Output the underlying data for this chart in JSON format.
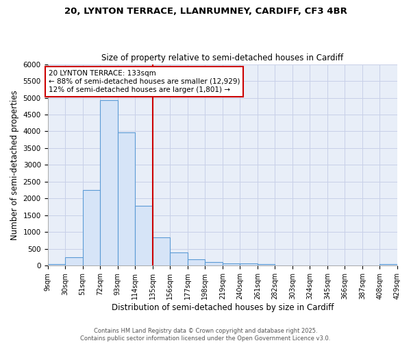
{
  "title1": "20, LYNTON TERRACE, LLANRUMNEY, CARDIFF, CF3 4BR",
  "title2": "Size of property relative to semi-detached houses in Cardiff",
  "xlabel": "Distribution of semi-detached houses by size in Cardiff",
  "ylabel": "Number of semi-detached properties",
  "bar_edges": [
    9,
    30,
    51,
    72,
    93,
    114,
    135,
    156,
    177,
    198,
    219,
    240,
    261,
    282,
    303,
    324,
    345,
    366,
    387,
    408,
    429
  ],
  "bar_heights": [
    50,
    255,
    2260,
    4930,
    3970,
    1780,
    840,
    400,
    195,
    105,
    70,
    60,
    55,
    10,
    5,
    5,
    5,
    3,
    3,
    50
  ],
  "bar_color": "#d6e4f7",
  "bar_edge_color": "#5b9bd5",
  "property_line_x": 135,
  "property_line_color": "#cc0000",
  "annotation_title": "20 LYNTON TERRACE: 133sqm",
  "annotation_line1": "← 88% of semi-detached houses are smaller (12,929)",
  "annotation_line2": "12% of semi-detached houses are larger (1,801) →",
  "annotation_box_color": "#cc0000",
  "ylim": [
    0,
    6000
  ],
  "yticks": [
    0,
    500,
    1000,
    1500,
    2000,
    2500,
    3000,
    3500,
    4000,
    4500,
    5000,
    5500,
    6000
  ],
  "tick_labels": [
    "9sqm",
    "30sqm",
    "51sqm",
    "72sqm",
    "93sqm",
    "114sqm",
    "135sqm",
    "156sqm",
    "177sqm",
    "198sqm",
    "219sqm",
    "240sqm",
    "261sqm",
    "282sqm",
    "303sqm",
    "324sqm",
    "345sqm",
    "366sqm",
    "387sqm",
    "408sqm",
    "429sqm"
  ],
  "plot_bg_color": "#e8eef8",
  "fig_bg_color": "#ffffff",
  "grid_color": "#c8d0e8",
  "footer1": "Contains HM Land Registry data © Crown copyright and database right 2025.",
  "footer2": "Contains public sector information licensed under the Open Government Licence v3.0."
}
